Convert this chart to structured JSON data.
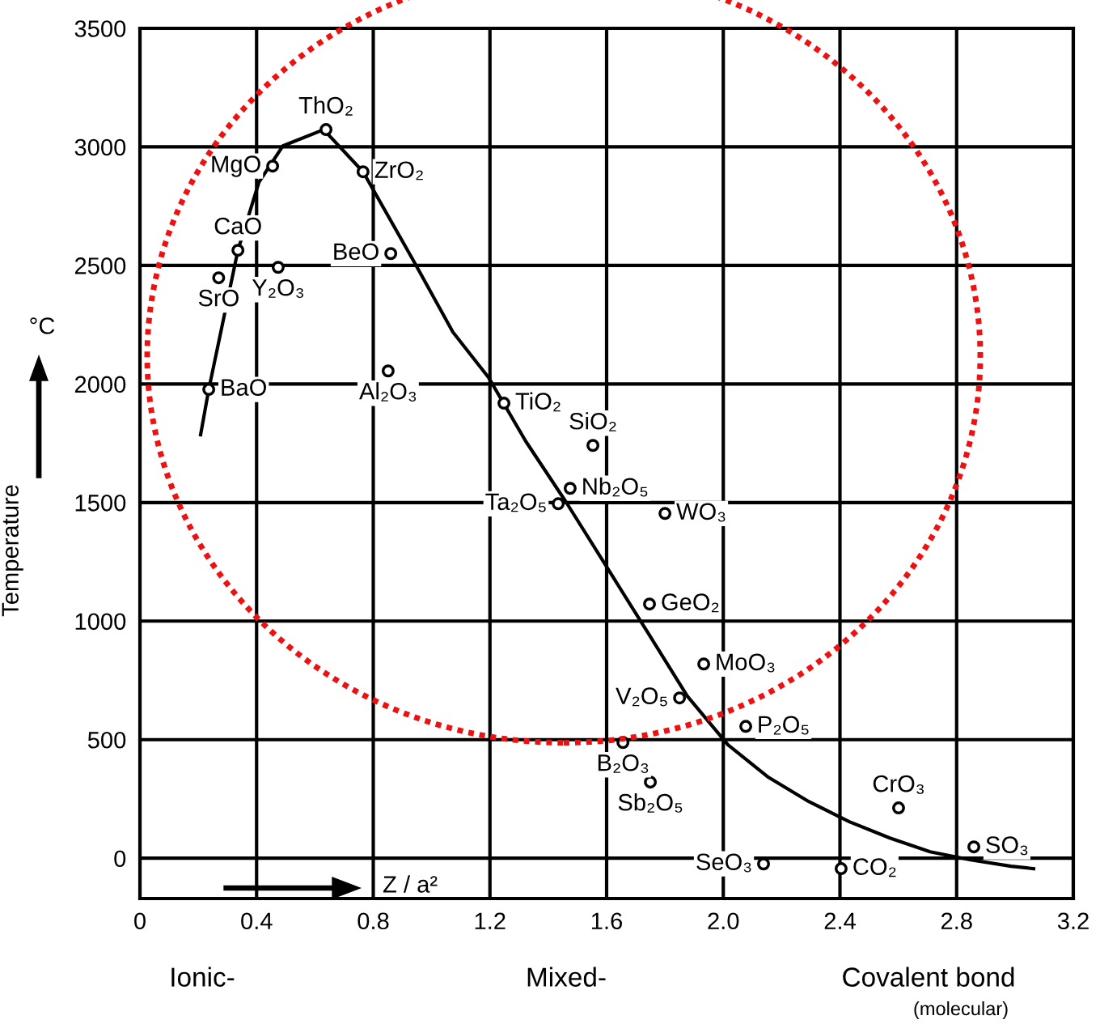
{
  "chart_data": {
    "type": "scatter",
    "xlabel": "Z / a²",
    "ylabel": "Temperature",
    "xlim": [
      0,
      3.2
    ],
    "ylim": [
      -170,
      3500
    ],
    "xticks": [
      0,
      0.4,
      0.8,
      1.2,
      1.6,
      {
        "value": 2,
        "label": "2.0"
      },
      2.4,
      2.8,
      3.2
    ],
    "yticks": [
      0,
      500,
      1000,
      1500,
      2000,
      2500,
      3000,
      3500
    ],
    "grid": true,
    "annotations": [
      "°C",
      "Ionic-",
      "Mixed-",
      "Covalent bond",
      "(molecular)"
    ],
    "series": [
      {
        "marker": "circle",
        "color": "#000000",
        "x": [
          0.236,
          0.27,
          0.336,
          0.455,
          0.474,
          0.638,
          0.765,
          0.86,
          0.851,
          1.248,
          1.553,
          1.475,
          1.434,
          1.8,
          1.747,
          1.933,
          1.85,
          2.077,
          1.656,
          1.75,
          2.601,
          2.859,
          2.138,
          2.404
        ],
        "values": [
          1977,
          2448,
          2564,
          2919,
          2492,
          3073,
          2895,
          2550,
          2055,
          1919,
          1741,
          1560,
          1495,
          1454,
          1072,
          819,
          676,
          556,
          488,
          321,
          212,
          48,
          -24,
          -44
        ],
        "value_labels": [
          "BaO",
          "SrO",
          "CaO",
          "MgO",
          "Y₂O₃",
          "ThO₂",
          "ZrO₂",
          "BeO",
          "Al₂O₃",
          "TiO₂",
          "SiO₂",
          "Nb₂O₅",
          "Ta₂O₅",
          "WO₃",
          "GeO₂",
          "MoO₃",
          "V₂O₅",
          "P₂O₅",
          "B₂O₃",
          "Sb₂O₅",
          "CrO₃",
          "SO₃",
          "SeO₃",
          "CO₂"
        ]
      },
      {
        "type": "line",
        "color": "#000000",
        "x": [
          0.208,
          0.236,
          0.336,
          0.408,
          0.49,
          0.63,
          0.765,
          0.935,
          1.073,
          1.195,
          1.323,
          1.461,
          1.6,
          1.739,
          1.877,
          2.016,
          2.155,
          2.293,
          2.432,
          2.571,
          2.709,
          2.848,
          2.987,
          3.064
        ],
        "values": [
          1786,
          1977,
          2564,
          2851,
          3004,
          3073,
          2895,
          2526,
          2219,
          2028,
          1758,
          1502,
          1229,
          956,
          683,
          478,
          341,
          239,
          154,
          85,
          27,
          -7,
          -34,
          -44
        ]
      }
    ]
  }
}
